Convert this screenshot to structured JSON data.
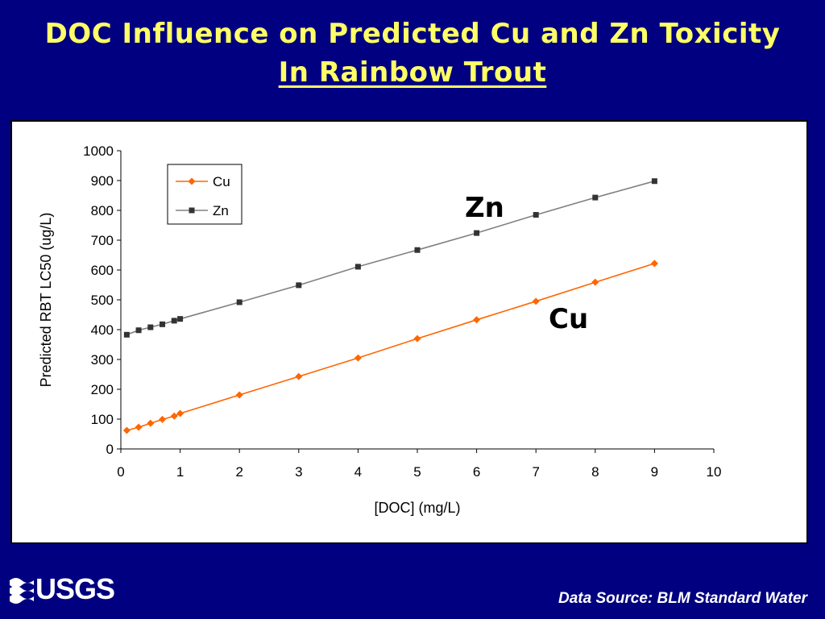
{
  "slide": {
    "title_line1": "DOC Influence on Predicted Cu and Zn Toxicity",
    "title_line2": "In Rainbow Trout",
    "logo_text": "USGS",
    "source": "Data Source: BLM Standard Water"
  },
  "colors": {
    "background": "#000080",
    "title": "#FFFF66",
    "cu": "#FF6600",
    "zn": "#808080",
    "zn_marker": "#333333"
  },
  "chart_data": {
    "type": "line",
    "xlabel": "[DOC] (mg/L)",
    "ylabel": "Predicted RBT LC50 (ug/L)",
    "xlim": [
      0,
      10
    ],
    "ylim": [
      0,
      1000
    ],
    "xticks": [
      0,
      1,
      2,
      3,
      4,
      5,
      6,
      7,
      8,
      9,
      10
    ],
    "yticks": [
      0,
      100,
      200,
      300,
      400,
      500,
      600,
      700,
      800,
      900,
      1000
    ],
    "grid": false,
    "legend_position": "top-left",
    "series": [
      {
        "name": "Cu",
        "marker": "diamond",
        "color": "#FF6600",
        "x": [
          0.1,
          0.3,
          0.5,
          0.7,
          0.9,
          1,
          2,
          3,
          4,
          5,
          6,
          7,
          8,
          9
        ],
        "y": [
          62,
          73,
          86,
          99,
          110,
          119,
          181,
          243,
          305,
          370,
          433,
          495,
          559,
          622
        ]
      },
      {
        "name": "Zn",
        "marker": "square",
        "color": "#808080",
        "x": [
          0.1,
          0.3,
          0.5,
          0.7,
          0.9,
          1,
          2,
          3,
          4,
          5,
          6,
          7,
          8,
          9
        ],
        "y": [
          383,
          398,
          408,
          418,
          430,
          436,
          492,
          549,
          611,
          667,
          724,
          785,
          843,
          898
        ]
      }
    ],
    "annotations": [
      {
        "text": "Zn",
        "series": "Zn"
      },
      {
        "text": "Cu",
        "series": "Cu"
      }
    ]
  }
}
